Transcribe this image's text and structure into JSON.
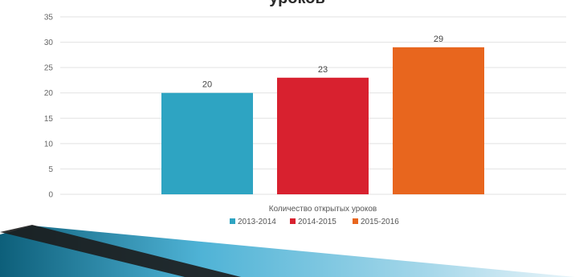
{
  "chart_data": {
    "type": "bar",
    "title": "уроков",
    "categories": [
      "Количество открытых уроков"
    ],
    "series": [
      {
        "name": "2013-2014",
        "values": [
          20
        ],
        "color": "#2ea4c2"
      },
      {
        "name": "2014-2015",
        "values": [
          23
        ],
        "color": "#d8212f"
      },
      {
        "name": "2015-2016",
        "values": [
          29
        ],
        "color": "#e8661e"
      }
    ],
    "data_labels": [
      "20",
      "23",
      "29"
    ],
    "ylim": [
      0,
      35
    ],
    "yticks": [
      0,
      5,
      10,
      15,
      20,
      25,
      30,
      35
    ],
    "xlabel": "",
    "ylabel": "",
    "grid": true,
    "legend_position": "bottom"
  }
}
